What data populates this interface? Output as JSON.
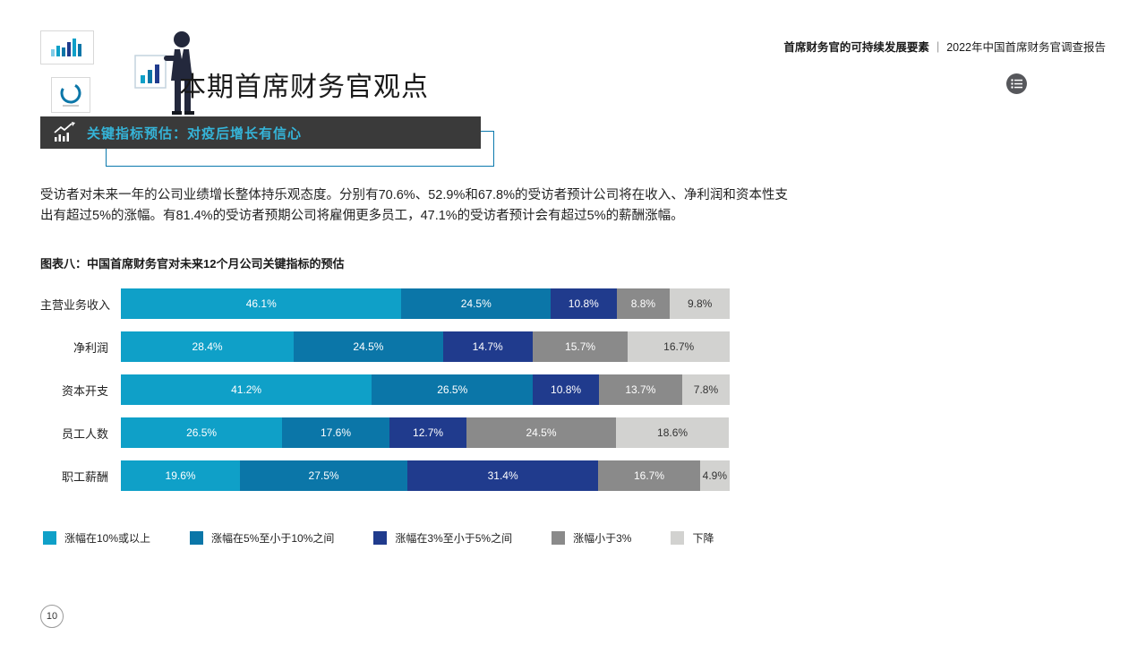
{
  "header": {
    "section_title": "首席财务官的可持续发展要素",
    "divider": "|",
    "report_title": "2022年中国首席财务官调查报告"
  },
  "page": {
    "title": "本期首席财务官观点",
    "number": "10"
  },
  "banner": {
    "title": "关键指标预估：对疫后增长有信心"
  },
  "body": {
    "paragraph": "受访者对未来一年的公司业绩增长整体持乐观态度。分别有70.6%、52.9%和67.8%的受访者预计公司将在收入、净利润和资本性支出有超过5%的涨幅。有81.4%的受访者预期公司将雇佣更多员工，47.1%的受访者预计会有超过5%的薪酬涨幅。"
  },
  "chart_data": {
    "type": "bar",
    "stacked": true,
    "orientation": "horizontal",
    "title": "图表八：中国首席财务官对未来12个月公司关键指标的预估",
    "categories": [
      "主营业务收入",
      "净利润",
      "资本开支",
      "员工人数",
      "职工薪酬"
    ],
    "series": [
      {
        "name": "涨幅在10%或以上",
        "color": "#0fa0c8",
        "values": [
          46.1,
          28.4,
          41.2,
          26.5,
          19.6
        ]
      },
      {
        "name": "涨幅在5%至小于10%之间",
        "color": "#0b76a8",
        "values": [
          24.5,
          24.5,
          26.5,
          17.6,
          27.5
        ]
      },
      {
        "name": "涨幅在3%至小于5%之间",
        "color": "#203b8d",
        "values": [
          10.8,
          14.7,
          10.8,
          12.7,
          31.4
        ]
      },
      {
        "name": "涨幅小于3%",
        "color": "#8a8a8a",
        "values": [
          8.8,
          15.7,
          13.7,
          24.5,
          16.7
        ]
      },
      {
        "name": "下降",
        "color": "#d2d2d0",
        "values": [
          9.8,
          16.7,
          7.8,
          18.6,
          4.9
        ]
      }
    ],
    "value_suffix": "%",
    "xlim": [
      0,
      100
    ],
    "legend_position": "bottom",
    "grid": false
  },
  "icons": {
    "brand_bar_chart": "bar-chart-icon",
    "brand_donut": "donut-chart-icon",
    "banner_icon": "trend-line-arrow-icon",
    "menu": "list-menu-icon"
  },
  "colors": {
    "banner_bg": "#3a3a3a",
    "banner_text": "#35b4d8",
    "accent_blue": "#0b76a8"
  }
}
